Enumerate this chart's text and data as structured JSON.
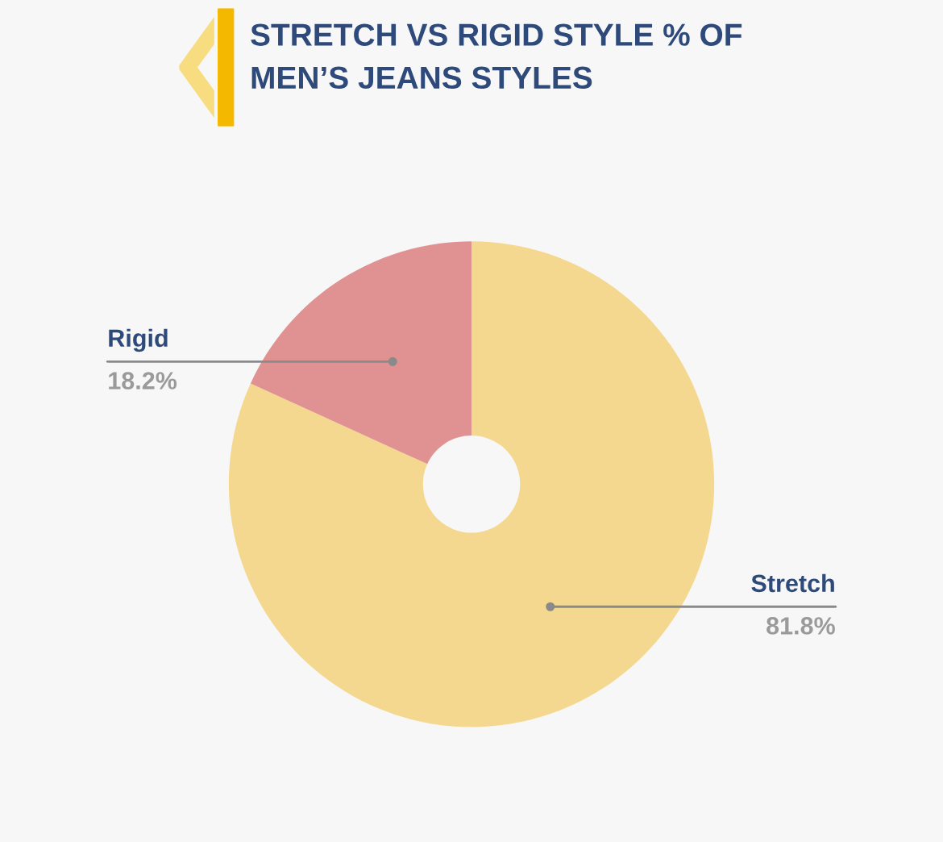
{
  "chart_data": {
    "type": "donut",
    "title": "STRETCH VS RIGID STYLE % OF\nMEN’S JEANS STYLES",
    "categories": [
      "Stretch",
      "Rigid"
    ],
    "values": [
      81.8,
      18.2
    ],
    "colors": [
      "#f5d88f",
      "#e09293"
    ],
    "value_labels": [
      "81.8%",
      "18.2%"
    ],
    "legend": false
  }
}
